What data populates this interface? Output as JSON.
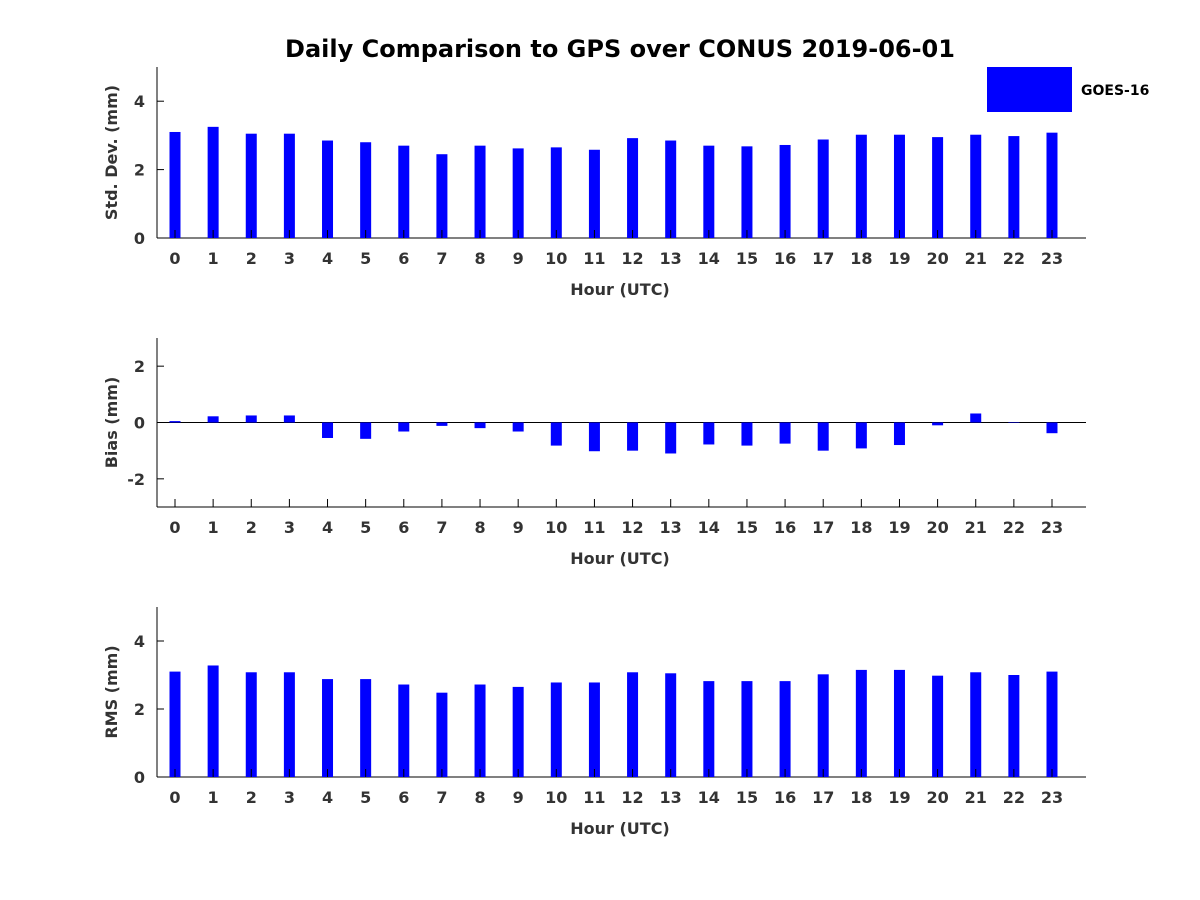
{
  "chart_data": {
    "title": "Daily Comparison to GPS over CONUS 2019-06-01",
    "legend": {
      "label": "GOES-16",
      "color": "#0000ff",
      "placement": "top-right"
    },
    "categories": [
      "0",
      "1",
      "2",
      "3",
      "4",
      "5",
      "6",
      "7",
      "8",
      "9",
      "10",
      "11",
      "12",
      "13",
      "14",
      "15",
      "16",
      "17",
      "18",
      "19",
      "20",
      "21",
      "22",
      "23"
    ],
    "panels": [
      {
        "id": "std",
        "type": "bar",
        "ylabel": "Std. Dev. (mm)",
        "xlabel": "Hour (UTC)",
        "ylim": [
          0,
          5
        ],
        "yticks": [
          0,
          2,
          4
        ],
        "values": [
          3.1,
          3.25,
          3.05,
          3.05,
          2.85,
          2.8,
          2.7,
          2.45,
          2.7,
          2.62,
          2.65,
          2.58,
          2.92,
          2.85,
          2.7,
          2.68,
          2.72,
          2.88,
          3.02,
          3.02,
          2.95,
          3.02,
          2.98,
          3.08
        ]
      },
      {
        "id": "bias",
        "type": "bar",
        "ylabel": "Bias (mm)",
        "xlabel": "Hour (UTC)",
        "ylim": [
          -3,
          3
        ],
        "yticks": [
          -2,
          0,
          2
        ],
        "values": [
          0.05,
          0.22,
          0.25,
          0.25,
          -0.55,
          -0.58,
          -0.32,
          -0.12,
          -0.2,
          -0.32,
          -0.82,
          -1.02,
          -1.0,
          -1.1,
          -0.78,
          -0.82,
          -0.75,
          -1.0,
          -0.92,
          -0.8,
          -0.1,
          0.32,
          0.0,
          -0.38
        ]
      },
      {
        "id": "rms",
        "type": "bar",
        "ylabel": "RMS (mm)",
        "xlabel": "Hour (UTC)",
        "ylim": [
          0,
          5
        ],
        "yticks": [
          0,
          2,
          4
        ],
        "values": [
          3.1,
          3.28,
          3.08,
          3.08,
          2.88,
          2.88,
          2.72,
          2.48,
          2.72,
          2.65,
          2.78,
          2.78,
          3.08,
          3.05,
          2.82,
          2.82,
          2.82,
          3.02,
          3.15,
          3.15,
          2.98,
          3.08,
          3.0,
          3.1
        ]
      }
    ]
  }
}
